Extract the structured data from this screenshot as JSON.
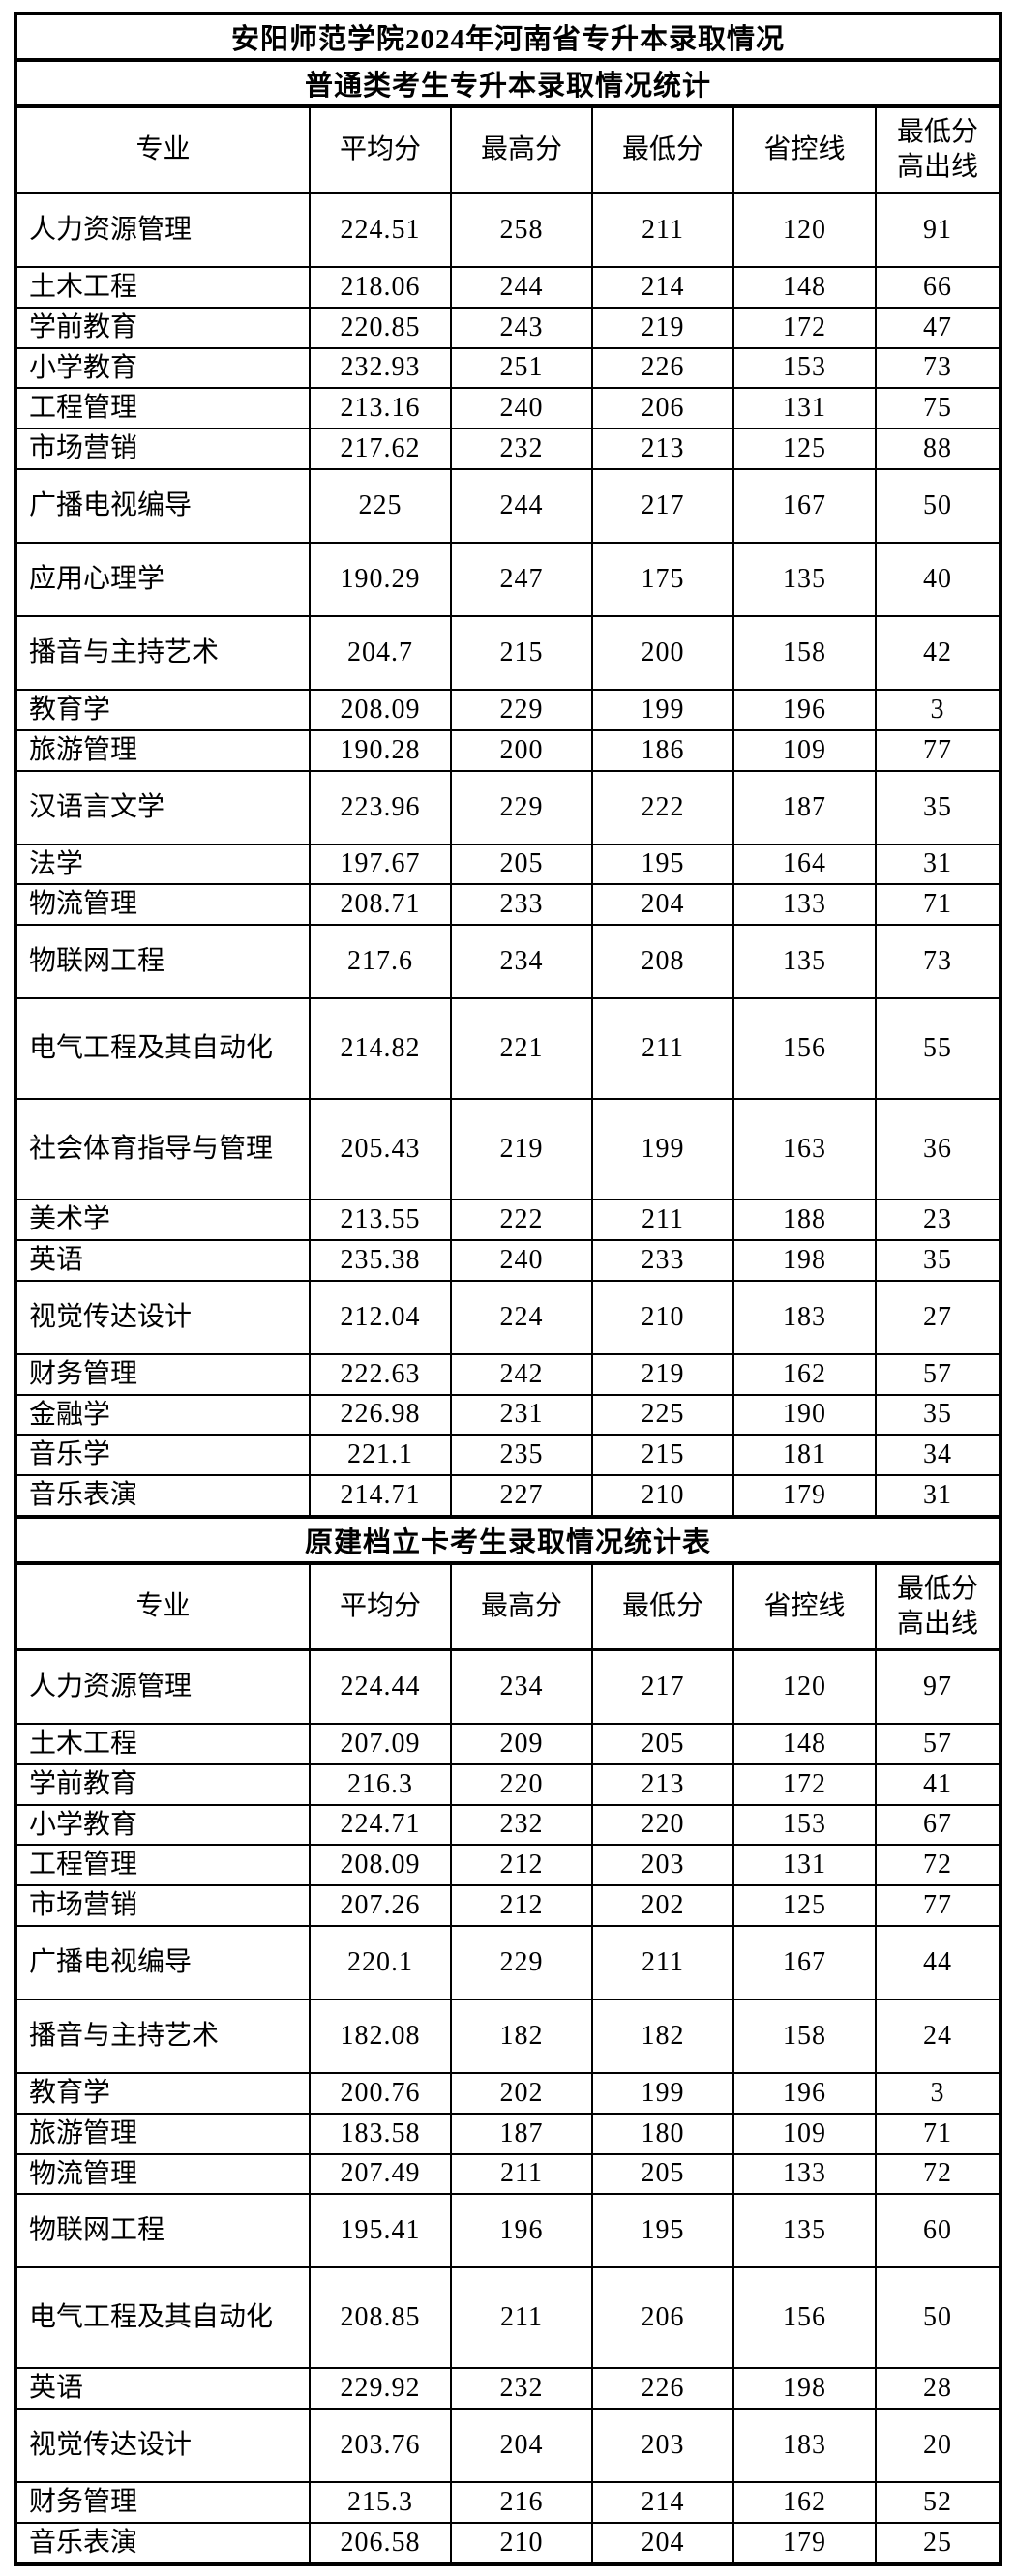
{
  "page": {
    "main_title": "安阳师范学院2024年河南省专升本录取情况"
  },
  "columns": [
    "专业",
    "平均分",
    "最高分",
    "最低分",
    "省控线",
    "最低分\n高出线"
  ],
  "table1": {
    "title": "普通类考生专升本录取情况统计",
    "rows": [
      {
        "h": "m",
        "cells": [
          "人力资源管理",
          "224.51",
          "258",
          "211",
          "120",
          "91"
        ]
      },
      {
        "h": "s",
        "cells": [
          "土木工程",
          "218.06",
          "244",
          "214",
          "148",
          "66"
        ]
      },
      {
        "h": "s",
        "cells": [
          "学前教育",
          "220.85",
          "243",
          "219",
          "172",
          "47"
        ]
      },
      {
        "h": "s",
        "cells": [
          "小学教育",
          "232.93",
          "251",
          "226",
          "153",
          "73"
        ]
      },
      {
        "h": "s",
        "cells": [
          "工程管理",
          "213.16",
          "240",
          "206",
          "131",
          "75"
        ]
      },
      {
        "h": "s",
        "cells": [
          "市场营销",
          "217.62",
          "232",
          "213",
          "125",
          "88"
        ]
      },
      {
        "h": "m",
        "cells": [
          "广播电视编导",
          "225",
          "244",
          "217",
          "167",
          "50"
        ]
      },
      {
        "h": "m",
        "cells": [
          "应用心理学",
          "190.29",
          "247",
          "175",
          "135",
          "40"
        ]
      },
      {
        "h": "m",
        "cells": [
          "播音与主持艺术",
          "204.7",
          "215",
          "200",
          "158",
          "42"
        ]
      },
      {
        "h": "s",
        "cells": [
          "教育学",
          "208.09",
          "229",
          "199",
          "196",
          "3"
        ]
      },
      {
        "h": "s",
        "cells": [
          "旅游管理",
          "190.28",
          "200",
          "186",
          "109",
          "77"
        ]
      },
      {
        "h": "m",
        "cells": [
          "汉语言文学",
          "223.96",
          "229",
          "222",
          "187",
          "35"
        ]
      },
      {
        "h": "s",
        "cells": [
          "法学",
          "197.67",
          "205",
          "195",
          "164",
          "31"
        ]
      },
      {
        "h": "s",
        "cells": [
          "物流管理",
          "208.71",
          "233",
          "204",
          "133",
          "71"
        ]
      },
      {
        "h": "m",
        "cells": [
          "物联网工程",
          "217.6",
          "234",
          "208",
          "135",
          "73"
        ]
      },
      {
        "h": "l",
        "cells": [
          "电气工程及其自动化",
          "214.82",
          "221",
          "211",
          "156",
          "55"
        ]
      },
      {
        "h": "l",
        "cells": [
          "社会体育指导与管理",
          "205.43",
          "219",
          "199",
          "163",
          "36"
        ]
      },
      {
        "h": "s",
        "cells": [
          "美术学",
          "213.55",
          "222",
          "211",
          "188",
          "23"
        ]
      },
      {
        "h": "s",
        "cells": [
          "英语",
          "235.38",
          "240",
          "233",
          "198",
          "35"
        ]
      },
      {
        "h": "m",
        "cells": [
          "视觉传达设计",
          "212.04",
          "224",
          "210",
          "183",
          "27"
        ]
      },
      {
        "h": "s",
        "cells": [
          "财务管理",
          "222.63",
          "242",
          "219",
          "162",
          "57"
        ]
      },
      {
        "h": "s",
        "cells": [
          "金融学",
          "226.98",
          "231",
          "225",
          "190",
          "35"
        ]
      },
      {
        "h": "s",
        "cells": [
          "音乐学",
          "221.1",
          "235",
          "215",
          "181",
          "34"
        ]
      },
      {
        "h": "s",
        "cells": [
          "音乐表演",
          "214.71",
          "227",
          "210",
          "179",
          "31"
        ]
      }
    ]
  },
  "table2": {
    "title": "原建档立卡考生录取情况统计表",
    "rows": [
      {
        "h": "m",
        "cells": [
          "人力资源管理",
          "224.44",
          "234",
          "217",
          "120",
          "97"
        ]
      },
      {
        "h": "s",
        "cells": [
          "土木工程",
          "207.09",
          "209",
          "205",
          "148",
          "57"
        ]
      },
      {
        "h": "s",
        "cells": [
          "学前教育",
          "216.3",
          "220",
          "213",
          "172",
          "41"
        ]
      },
      {
        "h": "s",
        "cells": [
          "小学教育",
          "224.71",
          "232",
          "220",
          "153",
          "67"
        ]
      },
      {
        "h": "s",
        "cells": [
          "工程管理",
          "208.09",
          "212",
          "203",
          "131",
          "72"
        ]
      },
      {
        "h": "s",
        "cells": [
          "市场营销",
          "207.26",
          "212",
          "202",
          "125",
          "77"
        ]
      },
      {
        "h": "m",
        "cells": [
          "广播电视编导",
          "220.1",
          "229",
          "211",
          "167",
          "44"
        ]
      },
      {
        "h": "m",
        "cells": [
          "播音与主持艺术",
          "182.08",
          "182",
          "182",
          "158",
          "24"
        ]
      },
      {
        "h": "s",
        "cells": [
          "教育学",
          "200.76",
          "202",
          "199",
          "196",
          "3"
        ]
      },
      {
        "h": "s",
        "cells": [
          "旅游管理",
          "183.58",
          "187",
          "180",
          "109",
          "71"
        ]
      },
      {
        "h": "s",
        "cells": [
          "物流管理",
          "207.49",
          "211",
          "205",
          "133",
          "72"
        ]
      },
      {
        "h": "m",
        "cells": [
          "物联网工程",
          "195.41",
          "196",
          "195",
          "135",
          "60"
        ]
      },
      {
        "h": "l",
        "cells": [
          "电气工程及其自动化",
          "208.85",
          "211",
          "206",
          "156",
          "50"
        ]
      },
      {
        "h": "s",
        "cells": [
          "英语",
          "229.92",
          "232",
          "226",
          "198",
          "28"
        ]
      },
      {
        "h": "m",
        "cells": [
          "视觉传达设计",
          "203.76",
          "204",
          "203",
          "183",
          "20"
        ]
      },
      {
        "h": "s",
        "cells": [
          "财务管理",
          "215.3",
          "216",
          "214",
          "162",
          "52"
        ]
      },
      {
        "h": "s",
        "cells": [
          "音乐表演",
          "206.58",
          "210",
          "204",
          "179",
          "25"
        ]
      }
    ]
  }
}
